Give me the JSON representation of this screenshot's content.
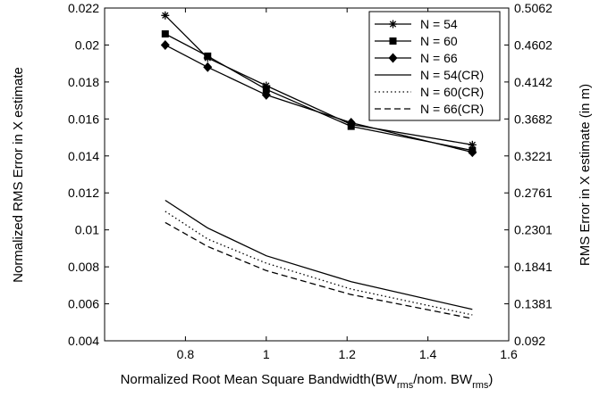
{
  "chart_data": {
    "type": "line",
    "xlabel_main": "Normalized Root Mean Square Bandwidth(BW",
    "xlabel_sub1": "rms",
    "xlabel_mid": "/nom. BW",
    "xlabel_sub2": "rms",
    "xlabel_end": ")",
    "ylabel_left": "Normalized RMS Error in X estimate",
    "ylabel_right": "RMS Error in X estimate (in m)",
    "xlim": [
      0.6,
      1.6
    ],
    "ylim": [
      0.004,
      0.022
    ],
    "ylim_right": [
      0.092,
      0.5062
    ],
    "xticks": [
      "0.8",
      "1",
      "1.2",
      "1.4",
      "1.6"
    ],
    "xtick_values": [
      0.8,
      1.0,
      1.2,
      1.4,
      1.6
    ],
    "yticks_left": [
      "0.004",
      "0.006",
      "0.008",
      "0.01",
      "0.012",
      "0.014",
      "0.016",
      "0.018",
      "0.02",
      "0.022"
    ],
    "ytick_values_left": [
      0.004,
      0.006,
      0.008,
      0.01,
      0.012,
      0.014,
      0.016,
      0.018,
      0.02,
      0.022
    ],
    "yticks_right": [
      "0.092",
      "0.1381",
      "0.1841",
      "0.2301",
      "0.2761",
      "0.3221",
      "0.3682",
      "0.4142",
      "0.4602",
      "0.5062"
    ],
    "legend_position": "top-right",
    "grid": false,
    "x": [
      0.75,
      0.855,
      1.0,
      1.21,
      1.51
    ],
    "series": [
      {
        "name": "N = 54",
        "marker": "star",
        "style": "solid",
        "values": [
          0.0216,
          0.0193,
          0.0178,
          0.0157,
          0.0146
        ]
      },
      {
        "name": "N = 60",
        "marker": "square",
        "style": "solid",
        "values": [
          0.0206,
          0.0194,
          0.0176,
          0.0156,
          0.0143
        ]
      },
      {
        "name": "N = 66",
        "marker": "diamond",
        "style": "solid",
        "values": [
          0.02,
          0.0188,
          0.0173,
          0.0158,
          0.0142
        ]
      },
      {
        "name": "N = 54(CR)",
        "marker": "none",
        "style": "solid",
        "values": [
          0.0116,
          0.0101,
          0.0086,
          0.0072,
          0.0057
        ]
      },
      {
        "name": "N = 60(CR)",
        "marker": "none",
        "style": "dotted",
        "values": [
          0.011,
          0.0095,
          0.0082,
          0.0068,
          0.0054
        ]
      },
      {
        "name": "N = 66(CR)",
        "marker": "none",
        "style": "dashed",
        "values": [
          0.0104,
          0.0091,
          0.0078,
          0.0065,
          0.0052
        ]
      }
    ]
  }
}
